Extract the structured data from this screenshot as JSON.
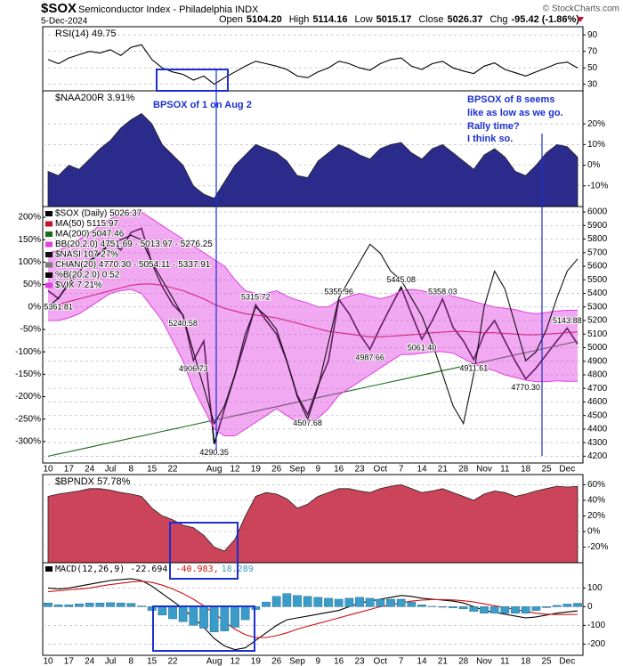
{
  "header": {
    "symbol": "$SOX",
    "name": "Semiconductor Index - Philadelphia INDX",
    "date": "5-Dec-2024",
    "copyright": "© StockCharts.com",
    "quote": [
      {
        "label": "Open",
        "value": "5104.20"
      },
      {
        "label": "High",
        "value": "5114.16"
      },
      {
        "label": "Low",
        "value": "5015.17"
      },
      {
        "label": "Close",
        "value": "5026.37"
      },
      {
        "label": "Chg",
        "value": "-95.42 (-1.86%)"
      }
    ]
  },
  "annotations": {
    "left": "BPSOX of 1 on Aug 2",
    "right": [
      "BPSOX of 8 seems",
      "like as low as we go.",
      "Rally time?",
      "I think so."
    ]
  },
  "chart_data": [
    {
      "type": "line",
      "title": "RSI(14) 49.75",
      "ylim": [
        22,
        100
      ],
      "yticks": [
        90,
        70,
        50,
        30
      ],
      "grid": true,
      "series": [
        {
          "color": "#000000",
          "values": [
            60,
            55,
            62,
            66,
            70,
            68,
            72,
            65,
            75,
            78,
            60,
            50,
            45,
            42,
            35,
            40,
            30,
            38,
            45,
            52,
            58,
            55,
            52,
            48,
            40,
            38,
            45,
            50,
            58,
            55,
            50,
            47,
            55,
            60,
            62,
            52,
            48,
            55,
            58,
            50,
            46,
            43,
            52,
            56,
            48,
            44,
            40,
            45,
            50,
            55,
            57,
            49.75
          ]
        }
      ]
    },
    {
      "type": "area",
      "title": "$NAA200R 3.91%",
      "ylim": [
        -20,
        36
      ],
      "yticks": [
        {
          "value": 20,
          "label": "20%"
        },
        {
          "value": 10,
          "label": "10%"
        },
        {
          "value": 0,
          "label": "0%"
        },
        {
          "value": -10,
          "label": "-10%"
        }
      ],
      "grid": true,
      "series": [
        {
          "color": "#2b2b8c",
          "values": [
            -3,
            -5,
            0,
            -2,
            3,
            8,
            12,
            18,
            22,
            25,
            20,
            10,
            5,
            0,
            -10,
            -14,
            -16,
            -8,
            0,
            5,
            10,
            8,
            6,
            2,
            -5,
            -6,
            2,
            6,
            10,
            8,
            5,
            3,
            8,
            10,
            11,
            6,
            3,
            8,
            10,
            6,
            2,
            -2,
            5,
            8,
            4,
            -3,
            -5,
            0,
            6,
            10,
            9,
            3.91
          ]
        }
      ]
    },
    {
      "type": "line",
      "ylim": [
        4150,
        6040
      ],
      "yticks": [
        6000,
        5900,
        5800,
        5700,
        5600,
        5500,
        5400,
        5300,
        5200,
        5100,
        5000,
        4900,
        4800,
        4700,
        4600,
        4500,
        4400,
        4300,
        4200
      ],
      "y2lim": [
        -348,
        224
      ],
      "y2ticks": [
        {
          "value": 200,
          "label": "200%"
        },
        {
          "value": 150,
          "label": "150%"
        },
        {
          "value": 100,
          "label": "100%"
        },
        {
          "value": 50,
          "label": "50%"
        },
        {
          "value": 0,
          "label": "0%"
        },
        {
          "value": -50,
          "label": "-50%"
        },
        {
          "value": -100,
          "label": "-100%"
        },
        {
          "value": -150,
          "label": "-150%"
        },
        {
          "value": -200,
          "label": "-200%"
        },
        {
          "value": -250,
          "label": "-250%"
        },
        {
          "value": -300,
          "label": "-300%"
        }
      ],
      "grid": true,
      "legend": "upper left",
      "categories": [
        "10",
        null,
        "17",
        null,
        "24",
        null,
        "Jul",
        null,
        "8",
        null,
        "15",
        null,
        "22",
        null,
        null,
        null,
        "Aug",
        null,
        "12",
        null,
        "19",
        null,
        "26",
        null,
        "Sep",
        null,
        "9",
        null,
        "16",
        null,
        "23",
        null,
        "Oct",
        null,
        "7",
        null,
        "14",
        null,
        "21",
        null,
        "28",
        null,
        "Nov",
        null,
        "11",
        null,
        "18",
        null,
        "25",
        null,
        "Dec",
        null
      ],
      "series": [
        {
          "name": "$SOX (Daily) 5026.37",
          "color": "#000000",
          "values": [
            5420,
            5361.81,
            5480,
            5560,
            5640,
            5700,
            5780,
            5720,
            5850,
            5880,
            5620,
            5450,
            5320,
            5240.58,
            4906.73,
            5050,
            4290.35,
            4550,
            4800,
            5050,
            5315.72,
            5200,
            5100,
            4900,
            4650,
            4507.68,
            4720,
            4900,
            5355.96,
            5250,
            5100,
            4987.66,
            5150,
            5300,
            5445.08,
            5250,
            5061.4,
            5200,
            5358.03,
            5150,
            5050,
            4911.61,
            5100,
            5200,
            5050,
            4900,
            4770.3,
            4850,
            4950,
            5050,
            5143.88,
            5026.37
          ],
          "value_labels": [
            null,
            "5361.81",
            null,
            null,
            null,
            null,
            null,
            null,
            null,
            null,
            null,
            null,
            null,
            "5240.58",
            "4906.73",
            null,
            "4290.35",
            null,
            null,
            null,
            "5315.72",
            null,
            null,
            null,
            null,
            "4507.68",
            null,
            null,
            "5355.96",
            null,
            null,
            "4987.66",
            null,
            null,
            "5445.08",
            null,
            "5061.40",
            null,
            "5358.03",
            null,
            null,
            "4911.61",
            null,
            null,
            null,
            null,
            "4770.30",
            null,
            null,
            null,
            "5143.88",
            null
          ]
        },
        {
          "name": "MA(50) 5115.97",
          "color": "#c8102e",
          "values": [
            5300,
            5320,
            5340,
            5360,
            5380,
            5400,
            5420,
            5440,
            5460,
            5470,
            5470,
            5460,
            5440,
            5420,
            5390,
            5360,
            5320,
            5290,
            5270,
            5250,
            5240,
            5230,
            5220,
            5200,
            5180,
            5160,
            5140,
            5120,
            5110,
            5100,
            5090,
            5080,
            5080,
            5085,
            5090,
            5095,
            5100,
            5110,
            5115,
            5120,
            5120,
            5115,
            5110,
            5110,
            5105,
            5100,
            5095,
            5095,
            5100,
            5105,
            5112,
            5115.97
          ]
        },
        {
          "name": "MA(200) 5047.46",
          "color": "#1a6b1a",
          "values": [
            4200,
            4217,
            4233,
            4250,
            4266,
            4283,
            4300,
            4316,
            4333,
            4349,
            4366,
            4383,
            4399,
            4416,
            4432,
            4449,
            4466,
            4482,
            4499,
            4515,
            4532,
            4549,
            4565,
            4582,
            4598,
            4615,
            4632,
            4648,
            4665,
            4681,
            4698,
            4715,
            4731,
            4748,
            4764,
            4781,
            4798,
            4814,
            4831,
            4847,
            4864,
            4881,
            4897,
            4914,
            4930,
            4947,
            4964,
            4980,
            4997,
            5013,
            5030,
            5047.46
          ]
        },
        {
          "name": "BB(20,2.0) 4751.69 - 5013.97 - 5276.25",
          "color": "#e040e0",
          "type": "band",
          "upper": [
            5700,
            5720,
            5750,
            5800,
            5850,
            5900,
            5950,
            5980,
            6000,
            6000,
            5950,
            5900,
            5850,
            5800,
            5750,
            5700,
            5650,
            5600,
            5500,
            5420,
            5400,
            5400,
            5420,
            5380,
            5350,
            5330,
            5300,
            5300,
            5350,
            5380,
            5400,
            5380,
            5360,
            5380,
            5420,
            5430,
            5420,
            5400,
            5400,
            5380,
            5360,
            5340,
            5320,
            5300,
            5290,
            5280,
            5260,
            5250,
            5260,
            5270,
            5275,
            5276.25
          ],
          "lower": [
            5200,
            5200,
            5220,
            5250,
            5300,
            5350,
            5400,
            5420,
            5430,
            5400,
            5300,
            5200,
            5050,
            4900,
            4700,
            4550,
            4400,
            4350,
            4350,
            4400,
            4450,
            4500,
            4550,
            4500,
            4450,
            4450,
            4480,
            4550,
            4650,
            4700,
            4750,
            4800,
            4850,
            4900,
            4950,
            4950,
            4960,
            4970,
            4970,
            4960,
            4920,
            4880,
            4850,
            4830,
            4800,
            4780,
            4760,
            4750,
            4750,
            4755,
            4752,
            4751.69
          ]
        },
        {
          "name": "$NASI 107.27%",
          "color": "#111111",
          "axis": "y2",
          "values": [
            0,
            20,
            50,
            80,
            100,
            120,
            140,
            150,
            160,
            150,
            100,
            60,
            20,
            -20,
            -100,
            -180,
            -260,
            -220,
            -150,
            -60,
            0,
            -20,
            -50,
            -120,
            -200,
            -250,
            -180,
            -80,
            20,
            60,
            100,
            140,
            120,
            80,
            60,
            20,
            -20,
            -80,
            -150,
            -220,
            -260,
            -150,
            0,
            80,
            40,
            -40,
            -120,
            -100,
            -50,
            20,
            80,
            107.27
          ]
        }
      ],
      "legend_extra": [
        {
          "name": "CHAN(20) 4770.30 - 5054.11 - 5337.91",
          "color": "#777777"
        },
        {
          "name": "%B(20,2.0) 0.52",
          "color": "#000000"
        },
        {
          "name": "$VIX 7.21%",
          "color": "#e040e0"
        }
      ]
    },
    {
      "type": "area",
      "title": "$BPNDX 57.78%",
      "ylim": [
        -40,
        73
      ],
      "yticks": [
        {
          "value": 60,
          "label": "60%"
        },
        {
          "value": 40,
          "label": "40%"
        },
        {
          "value": 20,
          "label": "20%"
        },
        {
          "value": 0,
          "label": "0%"
        },
        {
          "value": -20,
          "label": "-20%"
        }
      ],
      "grid": true,
      "series": [
        {
          "color": "#cc4459",
          "values": [
            45,
            48,
            50,
            52,
            55,
            55,
            53,
            50,
            48,
            45,
            30,
            20,
            15,
            8,
            5,
            -5,
            -20,
            -25,
            -10,
            20,
            45,
            50,
            48,
            42,
            30,
            35,
            45,
            50,
            55,
            55,
            52,
            50,
            55,
            58,
            60,
            55,
            50,
            52,
            55,
            50,
            45,
            40,
            48,
            52,
            50,
            45,
            48,
            52,
            55,
            58,
            57,
            57.78
          ]
        }
      ]
    },
    {
      "type": "line",
      "ylim": [
        -260,
        235
      ],
      "yticks": [
        100,
        0,
        -100,
        -200
      ],
      "grid": true,
      "legend": "inline",
      "categories": [
        "10",
        null,
        "17",
        null,
        "24",
        null,
        "Jul",
        null,
        "8",
        null,
        "15",
        null,
        "22",
        null,
        null,
        null,
        "Aug",
        null,
        "12",
        null,
        "19",
        null,
        "26",
        null,
        "Sep",
        null,
        "9",
        null,
        "16",
        null,
        "23",
        null,
        "Oct",
        null,
        "7",
        null,
        "14",
        null,
        "21",
        null,
        "28",
        null,
        "Nov",
        null,
        "11",
        null,
        "18",
        null,
        "25",
        null,
        "Dec",
        null
      ],
      "series": [
        {
          "name": "MACD(12,26,9) -22.694,",
          "color": "#000000",
          "values": [
            100,
            95,
            100,
            110,
            120,
            130,
            140,
            145,
            150,
            140,
            110,
            70,
            30,
            -10,
            -60,
            -110,
            -170,
            -210,
            -230,
            -220,
            -180,
            -140,
            -100,
            -70,
            -60,
            -50,
            -40,
            -30,
            -20,
            0,
            20,
            30,
            40,
            50,
            60,
            55,
            45,
            40,
            35,
            30,
            20,
            0,
            -20,
            -30,
            -40,
            -50,
            -60,
            -55,
            -45,
            -35,
            -28,
            -22.694
          ]
        },
        {
          "name": "-40.983,",
          "color": "#d01010",
          "values": [
            80,
            85,
            90,
            95,
            100,
            110,
            118,
            125,
            132,
            136,
            130,
            115,
            95,
            70,
            40,
            5,
            -35,
            -80,
            -120,
            -150,
            -165,
            -165,
            -155,
            -140,
            -120,
            -105,
            -90,
            -75,
            -60,
            -45,
            -30,
            -15,
            0,
            10,
            20,
            30,
            35,
            38,
            38,
            36,
            32,
            25,
            15,
            5,
            -5,
            -15,
            -25,
            -35,
            -40,
            -42,
            -42,
            -40.983
          ]
        },
        {
          "name": "18.289",
          "color": "#3a9cc8",
          "type": "bar",
          "values": [
            20,
            10,
            10,
            15,
            20,
            20,
            22,
            20,
            18,
            4,
            -20,
            -45,
            -65,
            -80,
            -100,
            -115,
            -135,
            -130,
            -110,
            -70,
            -15,
            25,
            55,
            70,
            60,
            55,
            50,
            45,
            40,
            45,
            50,
            45,
            40,
            40,
            40,
            25,
            10,
            2,
            -3,
            -6,
            -12,
            -25,
            -35,
            -35,
            -35,
            -35,
            -35,
            -20,
            -5,
            7,
            14,
            18.289
          ]
        }
      ]
    }
  ]
}
